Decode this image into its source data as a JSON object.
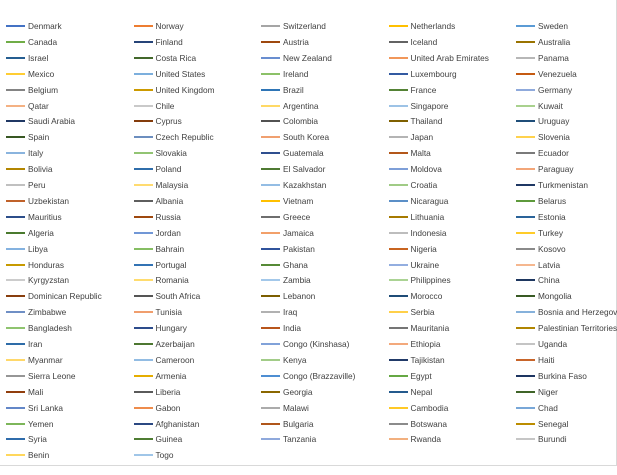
{
  "chart_data": {
    "type": "line",
    "legend_position": "full",
    "legend_order": "row-major",
    "legend_columns": 5,
    "series": [
      {
        "name": "Denmark",
        "color": "#4472C4"
      },
      {
        "name": "Norway",
        "color": "#ED7D31"
      },
      {
        "name": "Switzerland",
        "color": "#A5A5A5"
      },
      {
        "name": "Netherlands",
        "color": "#FFC000"
      },
      {
        "name": "Sweden",
        "color": "#5B9BD5"
      },
      {
        "name": "Canada",
        "color": "#70AD47"
      },
      {
        "name": "Finland",
        "color": "#264478"
      },
      {
        "name": "Austria",
        "color": "#9E480E"
      },
      {
        "name": "Iceland",
        "color": "#636363"
      },
      {
        "name": "Australia",
        "color": "#997300"
      },
      {
        "name": "Israel",
        "color": "#255E91"
      },
      {
        "name": "Costa Rica",
        "color": "#43682B"
      },
      {
        "name": "New Zealand",
        "color": "#698ED0"
      },
      {
        "name": "United Arab Emirates",
        "color": "#F1975A"
      },
      {
        "name": "Panama",
        "color": "#B7B7B7"
      },
      {
        "name": "Mexico",
        "color": "#FFCD33"
      },
      {
        "name": "United States",
        "color": "#7CAFDD"
      },
      {
        "name": "Ireland",
        "color": "#8CC168"
      },
      {
        "name": "Luxembourg",
        "color": "#335AA1"
      },
      {
        "name": "Venezuela",
        "color": "#C55A11"
      },
      {
        "name": "Belgium",
        "color": "#848484"
      },
      {
        "name": "United Kingdom",
        "color": "#CC9A00"
      },
      {
        "name": "Brazil",
        "color": "#2E75B6"
      },
      {
        "name": "France",
        "color": "#548235"
      },
      {
        "name": "Germany",
        "color": "#8FAADC"
      },
      {
        "name": "Qatar",
        "color": "#F4B183"
      },
      {
        "name": "Chile",
        "color": "#C9C9C9"
      },
      {
        "name": "Argentina",
        "color": "#FFD966"
      },
      {
        "name": "Singapore",
        "color": "#9DC3E6"
      },
      {
        "name": "Kuwait",
        "color": "#A9D18E"
      },
      {
        "name": "Saudi Arabia",
        "color": "#203864"
      },
      {
        "name": "Cyprus",
        "color": "#843C0C"
      },
      {
        "name": "Colombia",
        "color": "#525252"
      },
      {
        "name": "Thailand",
        "color": "#7F6000"
      },
      {
        "name": "Uruguay",
        "color": "#1F4E79"
      },
      {
        "name": "Spain",
        "color": "#385723"
      },
      {
        "name": "Czech Republic",
        "color": "#6C8EBF"
      },
      {
        "name": "South Korea",
        "color": "#F0A070"
      },
      {
        "name": "Japan",
        "color": "#B4B4B4"
      },
      {
        "name": "Slovenia",
        "color": "#FFD24D"
      },
      {
        "name": "Italy",
        "color": "#8AB4DE"
      },
      {
        "name": "Slovakia",
        "color": "#92C473"
      },
      {
        "name": "Guatemala",
        "color": "#2F4F8F"
      },
      {
        "name": "Malta",
        "color": "#B3571A"
      },
      {
        "name": "Ecuador",
        "color": "#7A7A7A"
      },
      {
        "name": "Bolivia",
        "color": "#B38600"
      },
      {
        "name": "Poland",
        "color": "#2F6DAA"
      },
      {
        "name": "El Salvador",
        "color": "#4F7A32"
      },
      {
        "name": "Moldova",
        "color": "#7E9FD8"
      },
      {
        "name": "Paraguay",
        "color": "#F3A679"
      },
      {
        "name": "Peru",
        "color": "#C0C0C0"
      },
      {
        "name": "Malaysia",
        "color": "#FFDB70"
      },
      {
        "name": "Kazakhstan",
        "color": "#94BDE4"
      },
      {
        "name": "Croatia",
        "color": "#A0CB86"
      },
      {
        "name": "Turkmenistan",
        "color": "#1F3864"
      },
      {
        "name": "Uzbekistan",
        "color": "#C0622A"
      },
      {
        "name": "Albania",
        "color": "#5E5E5E"
      },
      {
        "name": "Vietnam",
        "color": "#FFC000"
      },
      {
        "name": "Nicaragua",
        "color": "#5B8FC7"
      },
      {
        "name": "Belarus",
        "color": "#5E9A3C"
      },
      {
        "name": "Mauritius",
        "color": "#2C4E8A"
      },
      {
        "name": "Russia",
        "color": "#9E480E"
      },
      {
        "name": "Greece",
        "color": "#6E6E6E"
      },
      {
        "name": "Lithuania",
        "color": "#A67A00"
      },
      {
        "name": "Estonia",
        "color": "#2A6399"
      },
      {
        "name": "Algeria",
        "color": "#4A7A2E"
      },
      {
        "name": "Jordan",
        "color": "#7197D6"
      },
      {
        "name": "Jamaica",
        "color": "#F2A06A"
      },
      {
        "name": "Indonesia",
        "color": "#BDBDBD"
      },
      {
        "name": "Turkey",
        "color": "#FFCC29"
      },
      {
        "name": "Libya",
        "color": "#84B2E0"
      },
      {
        "name": "Bahrain",
        "color": "#86BE63"
      },
      {
        "name": "Pakistan",
        "color": "#30539C"
      },
      {
        "name": "Nigeria",
        "color": "#C86420"
      },
      {
        "name": "Kosovo",
        "color": "#8A8A8A"
      },
      {
        "name": "Honduras",
        "color": "#C79A00"
      },
      {
        "name": "Portugal",
        "color": "#3373B4"
      },
      {
        "name": "Ghana",
        "color": "#568A36"
      },
      {
        "name": "Ukraine",
        "color": "#93AEE0"
      },
      {
        "name": "Latvia",
        "color": "#F5B78F"
      },
      {
        "name": "Kyrgyzstan",
        "color": "#CCCCCC"
      },
      {
        "name": "Romania",
        "color": "#FFDC6E"
      },
      {
        "name": "Zambia",
        "color": "#A3C8EA"
      },
      {
        "name": "Philippines",
        "color": "#ABD394"
      },
      {
        "name": "China",
        "color": "#1E3760"
      },
      {
        "name": "Dominican Republic",
        "color": "#883E0E"
      },
      {
        "name": "South Africa",
        "color": "#555555"
      },
      {
        "name": "Lebanon",
        "color": "#7C5E00"
      },
      {
        "name": "Morocco",
        "color": "#1F4C77"
      },
      {
        "name": "Mongolia",
        "color": "#395A24"
      },
      {
        "name": "Zimbabwe",
        "color": "#6F8FC5"
      },
      {
        "name": "Tunisia",
        "color": "#F09E6D"
      },
      {
        "name": "Iraq",
        "color": "#B1B1B1"
      },
      {
        "name": "Serbia",
        "color": "#FFD04A"
      },
      {
        "name": "Bosnia and Herzegovina",
        "color": "#86B1DB"
      },
      {
        "name": "Bangladesh",
        "color": "#8FC46F"
      },
      {
        "name": "Hungary",
        "color": "#2D4C8C"
      },
      {
        "name": "India",
        "color": "#B8551B"
      },
      {
        "name": "Mauritania",
        "color": "#757575"
      },
      {
        "name": "Palestinian Territories",
        "color": "#B08500"
      },
      {
        "name": "Iran",
        "color": "#2E6CA8"
      },
      {
        "name": "Azerbaijan",
        "color": "#4D7731"
      },
      {
        "name": "Congo (Kinshasa)",
        "color": "#81A2D9"
      },
      {
        "name": "Ethiopia",
        "color": "#F3A97C"
      },
      {
        "name": "Uganda",
        "color": "#C4C4C4"
      },
      {
        "name": "Myanmar",
        "color": "#FFD86A"
      },
      {
        "name": "Cameroon",
        "color": "#92BCE3"
      },
      {
        "name": "Kenya",
        "color": "#A2CC88"
      },
      {
        "name": "Tajikistan",
        "color": "#213A68"
      },
      {
        "name": "Haiti",
        "color": "#C8652A"
      },
      {
        "name": "Sierra Leone",
        "color": "#969696"
      },
      {
        "name": "Armenia",
        "color": "#E5AD00"
      },
      {
        "name": "Congo (Brazzaville)",
        "color": "#4E8ED2"
      },
      {
        "name": "Egypt",
        "color": "#66A844"
      },
      {
        "name": "Burkina Faso",
        "color": "#1D3561"
      },
      {
        "name": "Mali",
        "color": "#913E0D"
      },
      {
        "name": "Liberia",
        "color": "#5A5A5A"
      },
      {
        "name": "Georgia",
        "color": "#8A6700"
      },
      {
        "name": "Nepal",
        "color": "#245A8D"
      },
      {
        "name": "Niger",
        "color": "#3F6428"
      },
      {
        "name": "Sri Lanka",
        "color": "#6387C8"
      },
      {
        "name": "Gabon",
        "color": "#EE8C4C"
      },
      {
        "name": "Malawi",
        "color": "#ABABAB"
      },
      {
        "name": "Cambodia",
        "color": "#FFC926"
      },
      {
        "name": "Chad",
        "color": "#78A7D8"
      },
      {
        "name": "Yemen",
        "color": "#7DB65A"
      },
      {
        "name": "Afghanistan",
        "color": "#2B4882"
      },
      {
        "name": "Bulgaria",
        "color": "#B0561A"
      },
      {
        "name": "Botswana",
        "color": "#8B8B8B"
      },
      {
        "name": "Senegal",
        "color": "#BC8D00"
      },
      {
        "name": "Syria",
        "color": "#2F6CAB"
      },
      {
        "name": "Guinea",
        "color": "#4F7D33"
      },
      {
        "name": "Tanzania",
        "color": "#8FA9DC"
      },
      {
        "name": "Rwanda",
        "color": "#F2B07F"
      },
      {
        "name": "Burundi",
        "color": "#C6C6C6"
      },
      {
        "name": "Benin",
        "color": "#FFD75C"
      },
      {
        "name": "Togo",
        "color": "#A0C6E8"
      }
    ]
  }
}
